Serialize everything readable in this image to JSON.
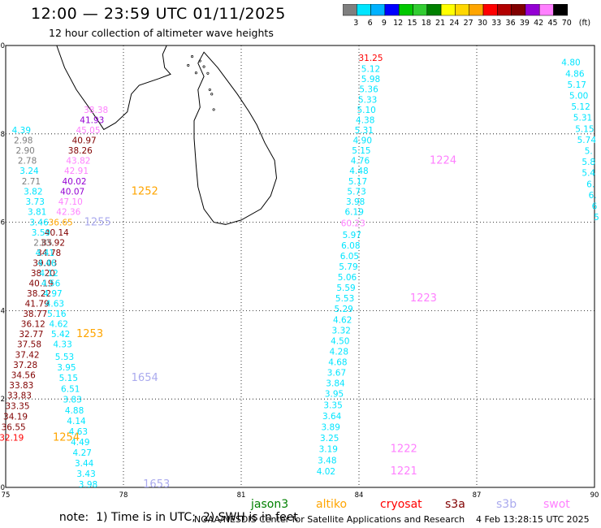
{
  "header": {
    "title": "12:00 — 23:59 UTC 01/11/2025",
    "subtitle": "12 hour collection of altimeter wave heights"
  },
  "colorbar": {
    "unit": "(ft)",
    "labels": [
      "3",
      "6",
      "9",
      "12",
      "15",
      "18",
      "21",
      "24",
      "27",
      "30",
      "33",
      "36",
      "39",
      "42",
      "45",
      "70"
    ],
    "colors": [
      "#7f7f7f",
      "#00e5ff",
      "#00b2ff",
      "#0000ff",
      "#00c800",
      "#32cd32",
      "#008000",
      "#ffff00",
      "#ffd700",
      "#ffa500",
      "#ff0000",
      "#b20000",
      "#800000",
      "#9400d3",
      "#ff80ff",
      "#000000"
    ]
  },
  "map": {
    "x_ticks": [
      "75",
      "78",
      "81",
      "84",
      "87",
      "90"
    ],
    "y_ticks": [
      "0",
      "2",
      "4",
      "6",
      "8",
      "10"
    ],
    "lon_range": [
      75,
      90
    ],
    "lat_range": [
      0,
      10
    ]
  },
  "labels": [
    {
      "t": "31.25",
      "lon": 84.3,
      "lat": 9.72,
      "c": "#ff0000"
    },
    {
      "t": "5.12",
      "lon": 84.3,
      "lat": 9.48,
      "c": "#00e5ff"
    },
    {
      "t": "5.98",
      "lon": 84.3,
      "lat": 9.25,
      "c": "#00e5ff"
    },
    {
      "t": "5.36",
      "lon": 84.25,
      "lat": 9.02,
      "c": "#00e5ff"
    },
    {
      "t": "5.33",
      "lon": 84.22,
      "lat": 8.78,
      "c": "#00e5ff"
    },
    {
      "t": "5.10",
      "lon": 84.19,
      "lat": 8.55,
      "c": "#00e5ff"
    },
    {
      "t": "4.38",
      "lon": 84.16,
      "lat": 8.32,
      "c": "#00e5ff"
    },
    {
      "t": "5.31",
      "lon": 84.13,
      "lat": 8.09,
      "c": "#00e5ff"
    },
    {
      "t": "4.90",
      "lon": 84.09,
      "lat": 7.86,
      "c": "#00e5ff"
    },
    {
      "t": "5.15",
      "lon": 84.06,
      "lat": 7.63,
      "c": "#00e5ff"
    },
    {
      "t": "4.76",
      "lon": 84.03,
      "lat": 7.4,
      "c": "#00e5ff"
    },
    {
      "t": "1224",
      "lon": 85.8,
      "lat": 7.4,
      "c": "#ff80ff"
    },
    {
      "t": "4.48",
      "lon": 84.0,
      "lat": 7.17,
      "c": "#00e5ff"
    },
    {
      "t": "5.17",
      "lon": 83.97,
      "lat": 6.93,
      "c": "#00e5ff"
    },
    {
      "t": "5.73",
      "lon": 83.94,
      "lat": 6.7,
      "c": "#00e5ff"
    },
    {
      "t": "3.98",
      "lon": 83.91,
      "lat": 6.47,
      "c": "#00e5ff"
    },
    {
      "t": "6.19",
      "lon": 83.88,
      "lat": 6.24,
      "c": "#00e5ff"
    },
    {
      "t": "60.23",
      "lon": 83.85,
      "lat": 5.98,
      "c": "#ff80ff"
    },
    {
      "t": "5.97",
      "lon": 83.82,
      "lat": 5.72,
      "c": "#00e5ff"
    },
    {
      "t": "6.08",
      "lon": 83.79,
      "lat": 5.48,
      "c": "#00e5ff"
    },
    {
      "t": "6.05",
      "lon": 83.76,
      "lat": 5.24,
      "c": "#00e5ff"
    },
    {
      "t": "5.79",
      "lon": 83.73,
      "lat": 5.0,
      "c": "#00e5ff"
    },
    {
      "t": "5.06",
      "lon": 83.7,
      "lat": 4.76,
      "c": "#00e5ff"
    },
    {
      "t": "5.59",
      "lon": 83.67,
      "lat": 4.52,
      "c": "#00e5ff"
    },
    {
      "t": "5.53",
      "lon": 83.64,
      "lat": 4.28,
      "c": "#00e5ff"
    },
    {
      "t": "1223",
      "lon": 85.3,
      "lat": 4.28,
      "c": "#ff80ff"
    },
    {
      "t": "5.29",
      "lon": 83.61,
      "lat": 4.04,
      "c": "#00e5ff"
    },
    {
      "t": "4.62",
      "lon": 83.58,
      "lat": 3.8,
      "c": "#00e5ff"
    },
    {
      "t": "3.32",
      "lon": 83.55,
      "lat": 3.56,
      "c": "#00e5ff"
    },
    {
      "t": "4.50",
      "lon": 83.52,
      "lat": 3.32,
      "c": "#00e5ff"
    },
    {
      "t": "4.28",
      "lon": 83.49,
      "lat": 3.08,
      "c": "#00e5ff"
    },
    {
      "t": "4.68",
      "lon": 83.46,
      "lat": 2.84,
      "c": "#00e5ff"
    },
    {
      "t": "3.67",
      "lon": 83.43,
      "lat": 2.6,
      "c": "#00e5ff"
    },
    {
      "t": "3.84",
      "lon": 83.4,
      "lat": 2.36,
      "c": "#00e5ff"
    },
    {
      "t": "3.95",
      "lon": 83.37,
      "lat": 2.12,
      "c": "#00e5ff"
    },
    {
      "t": "3.35",
      "lon": 83.34,
      "lat": 1.87,
      "c": "#00e5ff"
    },
    {
      "t": "3.64",
      "lon": 83.31,
      "lat": 1.62,
      "c": "#00e5ff"
    },
    {
      "t": "3.89",
      "lon": 83.28,
      "lat": 1.37,
      "c": "#00e5ff"
    },
    {
      "t": "3.25",
      "lon": 83.25,
      "lat": 1.12,
      "c": "#00e5ff"
    },
    {
      "t": "3.19",
      "lon": 83.22,
      "lat": 0.87,
      "c": "#00e5ff"
    },
    {
      "t": "1222",
      "lon": 84.8,
      "lat": 0.87,
      "c": "#ff80ff"
    },
    {
      "t": "3.48",
      "lon": 83.19,
      "lat": 0.62,
      "c": "#00e5ff"
    },
    {
      "t": "4.02",
      "lon": 83.16,
      "lat": 0.37,
      "c": "#00e5ff"
    },
    {
      "t": "1221",
      "lon": 84.8,
      "lat": 0.37,
      "c": "#ff80ff"
    },
    {
      "t": "4.80",
      "lon": 89.4,
      "lat": 9.62,
      "c": "#00e5ff"
    },
    {
      "t": "4.86",
      "lon": 89.5,
      "lat": 9.37,
      "c": "#00e5ff"
    },
    {
      "t": "5.17",
      "lon": 89.55,
      "lat": 9.12,
      "c": "#00e5ff"
    },
    {
      "t": "5.00",
      "lon": 89.6,
      "lat": 8.87,
      "c": "#00e5ff"
    },
    {
      "t": "5.12",
      "lon": 89.65,
      "lat": 8.62,
      "c": "#00e5ff"
    },
    {
      "t": "5.31",
      "lon": 89.7,
      "lat": 8.37,
      "c": "#00e5ff"
    },
    {
      "t": "5.15",
      "lon": 89.75,
      "lat": 8.12,
      "c": "#00e5ff"
    },
    {
      "t": "5.74",
      "lon": 89.8,
      "lat": 7.87,
      "c": "#00e5ff"
    },
    {
      "t": "5.",
      "lon": 89.85,
      "lat": 7.62,
      "c": "#00e5ff"
    },
    {
      "t": "5.8",
      "lon": 89.85,
      "lat": 7.37,
      "c": "#00e5ff"
    },
    {
      "t": "5.4",
      "lon": 89.85,
      "lat": 7.12,
      "c": "#00e5ff"
    },
    {
      "t": "6.",
      "lon": 89.9,
      "lat": 6.87,
      "c": "#00e5ff"
    },
    {
      "t": "6.",
      "lon": 89.95,
      "lat": 6.62,
      "c": "#00e5ff"
    },
    {
      "t": "6",
      "lon": 90.0,
      "lat": 6.37,
      "c": "#00e5ff"
    },
    {
      "t": "5",
      "lon": 90.05,
      "lat": 6.12,
      "c": "#00e5ff"
    },
    {
      "t": "38.38",
      "lon": 77.3,
      "lat": 8.55,
      "c": "#ff80ff"
    },
    {
      "t": "41.93",
      "lon": 77.2,
      "lat": 8.32,
      "c": "#9400d3"
    },
    {
      "t": "45.05",
      "lon": 77.1,
      "lat": 8.09,
      "c": "#ff80ff"
    },
    {
      "t": "40.97",
      "lon": 77.0,
      "lat": 7.86,
      "c": "#800000"
    },
    {
      "t": "38.26",
      "lon": 76.9,
      "lat": 7.63,
      "c": "#800000"
    },
    {
      "t": "43.82",
      "lon": 76.85,
      "lat": 7.4,
      "c": "#ff80ff"
    },
    {
      "t": "42.91",
      "lon": 76.8,
      "lat": 7.17,
      "c": "#ff80ff"
    },
    {
      "t": "40.02",
      "lon": 76.75,
      "lat": 6.93,
      "c": "#9400d3"
    },
    {
      "t": "40.07",
      "lon": 76.7,
      "lat": 6.7,
      "c": "#9400d3"
    },
    {
      "t": "1252",
      "lon": 78.2,
      "lat": 6.7,
      "c": "#ffa500"
    },
    {
      "t": "47.10",
      "lon": 76.65,
      "lat": 6.47,
      "c": "#ff80ff"
    },
    {
      "t": "42.36",
      "lon": 76.6,
      "lat": 6.24,
      "c": "#ff80ff"
    },
    {
      "t": "36.65",
      "lon": 76.4,
      "lat": 6.0,
      "c": "#ffa500"
    },
    {
      "t": "1255",
      "lon": 77.0,
      "lat": 6.0,
      "c": "#aaaaee"
    },
    {
      "t": "40.14",
      "lon": 76.3,
      "lat": 5.77,
      "c": "#800000"
    },
    {
      "t": "33.92",
      "lon": 76.2,
      "lat": 5.54,
      "c": "#800000"
    },
    {
      "t": "34.78",
      "lon": 76.1,
      "lat": 5.31,
      "c": "#800000"
    },
    {
      "t": "39.03",
      "lon": 76.0,
      "lat": 5.08,
      "c": "#800000"
    },
    {
      "t": "38.20",
      "lon": 75.95,
      "lat": 4.85,
      "c": "#800000"
    },
    {
      "t": "40.19",
      "lon": 75.9,
      "lat": 4.62,
      "c": "#800000"
    },
    {
      "t": "38.22",
      "lon": 75.85,
      "lat": 4.39,
      "c": "#800000"
    },
    {
      "t": "41.79",
      "lon": 75.8,
      "lat": 4.16,
      "c": "#800000"
    },
    {
      "t": "38.77",
      "lon": 75.75,
      "lat": 3.93,
      "c": "#800000"
    },
    {
      "t": "36.12",
      "lon": 75.7,
      "lat": 3.7,
      "c": "#800000"
    },
    {
      "t": "32.77",
      "lon": 75.65,
      "lat": 3.47,
      "c": "#800000"
    },
    {
      "t": "1253",
      "lon": 76.8,
      "lat": 3.47,
      "c": "#ffa500"
    },
    {
      "t": "37.58",
      "lon": 75.6,
      "lat": 3.24,
      "c": "#800000"
    },
    {
      "t": "37.42",
      "lon": 75.55,
      "lat": 3.01,
      "c": "#800000"
    },
    {
      "t": "37.28",
      "lon": 75.5,
      "lat": 2.78,
      "c": "#800000"
    },
    {
      "t": "34.56",
      "lon": 75.45,
      "lat": 2.55,
      "c": "#800000"
    },
    {
      "t": "33.83",
      "lon": 75.4,
      "lat": 2.32,
      "c": "#800000"
    },
    {
      "t": "33.83",
      "lon": 75.35,
      "lat": 2.09,
      "c": "#800000"
    },
    {
      "t": "33.35",
      "lon": 75.3,
      "lat": 1.85,
      "c": "#800000"
    },
    {
      "t": "34.19",
      "lon": 75.25,
      "lat": 1.61,
      "c": "#800000"
    },
    {
      "t": "36.55",
      "lon": 75.2,
      "lat": 1.37,
      "c": "#800000"
    },
    {
      "t": "32.19",
      "lon": 75.15,
      "lat": 1.13,
      "c": "#ff0000"
    },
    {
      "t": "1254",
      "lon": 76.2,
      "lat": 1.13,
      "c": "#ffa500"
    },
    {
      "t": "4.39",
      "lon": 75.4,
      "lat": 8.09,
      "c": "#00e5ff"
    },
    {
      "t": "2.98",
      "lon": 75.45,
      "lat": 7.86,
      "c": "#7f7f7f"
    },
    {
      "t": "2.90",
      "lon": 75.5,
      "lat": 7.63,
      "c": "#7f7f7f"
    },
    {
      "t": "2.78",
      "lon": 75.55,
      "lat": 7.4,
      "c": "#7f7f7f"
    },
    {
      "t": "3.24",
      "lon": 75.6,
      "lat": 7.17,
      "c": "#00e5ff"
    },
    {
      "t": "2.71",
      "lon": 75.65,
      "lat": 6.93,
      "c": "#7f7f7f"
    },
    {
      "t": "3.82",
      "lon": 75.7,
      "lat": 6.7,
      "c": "#00e5ff"
    },
    {
      "t": "3.73",
      "lon": 75.75,
      "lat": 6.47,
      "c": "#00e5ff"
    },
    {
      "t": "3.81",
      "lon": 75.8,
      "lat": 6.24,
      "c": "#00e5ff"
    },
    {
      "t": "3.46",
      "lon": 75.85,
      "lat": 6.0,
      "c": "#00e5ff"
    },
    {
      "t": "3.59",
      "lon": 75.9,
      "lat": 5.77,
      "c": "#00e5ff"
    },
    {
      "t": "2.85",
      "lon": 75.95,
      "lat": 5.54,
      "c": "#7f7f7f"
    },
    {
      "t": "4.41",
      "lon": 76.0,
      "lat": 5.31,
      "c": "#00e5ff"
    },
    {
      "t": "4.46",
      "lon": 76.05,
      "lat": 5.08,
      "c": "#00e5ff"
    },
    {
      "t": "4.12",
      "lon": 76.1,
      "lat": 4.85,
      "c": "#00e5ff"
    },
    {
      "t": "4.56",
      "lon": 76.15,
      "lat": 4.62,
      "c": "#00e5ff"
    },
    {
      "t": "4.97",
      "lon": 76.2,
      "lat": 4.39,
      "c": "#00e5ff"
    },
    {
      "t": "4.63",
      "lon": 76.25,
      "lat": 4.16,
      "c": "#00e5ff"
    },
    {
      "t": "5.16",
      "lon": 76.3,
      "lat": 3.93,
      "c": "#00e5ff"
    },
    {
      "t": "4.62",
      "lon": 76.35,
      "lat": 3.7,
      "c": "#00e5ff"
    },
    {
      "t": "5.42",
      "lon": 76.4,
      "lat": 3.47,
      "c": "#00e5ff"
    },
    {
      "t": "4.33",
      "lon": 76.45,
      "lat": 3.24,
      "c": "#00e5ff"
    },
    {
      "t": "5.53",
      "lon": 76.5,
      "lat": 2.96,
      "c": "#00e5ff"
    },
    {
      "t": "3.95",
      "lon": 76.55,
      "lat": 2.72,
      "c": "#00e5ff"
    },
    {
      "t": "5.15",
      "lon": 76.6,
      "lat": 2.48,
      "c": "#00e5ff"
    },
    {
      "t": "1654",
      "lon": 78.2,
      "lat": 2.48,
      "c": "#aaaaee"
    },
    {
      "t": "6.51",
      "lon": 76.65,
      "lat": 2.23,
      "c": "#00e5ff"
    },
    {
      "t": "3.83",
      "lon": 76.7,
      "lat": 1.99,
      "c": "#00e5ff"
    },
    {
      "t": "4.88",
      "lon": 76.75,
      "lat": 1.75,
      "c": "#00e5ff"
    },
    {
      "t": "4.14",
      "lon": 76.8,
      "lat": 1.51,
      "c": "#00e5ff"
    },
    {
      "t": "4.63",
      "lon": 76.85,
      "lat": 1.27,
      "c": "#00e5ff"
    },
    {
      "t": "4.49",
      "lon": 76.9,
      "lat": 1.03,
      "c": "#00e5ff"
    },
    {
      "t": "4.27",
      "lon": 76.95,
      "lat": 0.79,
      "c": "#00e5ff"
    },
    {
      "t": "3.44",
      "lon": 77.0,
      "lat": 0.55,
      "c": "#00e5ff"
    },
    {
      "t": "3.43",
      "lon": 77.05,
      "lat": 0.31,
      "c": "#00e5ff"
    },
    {
      "t": "3.98",
      "lon": 77.1,
      "lat": 0.07,
      "c": "#00e5ff"
    },
    {
      "t": "1653",
      "lon": 78.5,
      "lat": 0.07,
      "c": "#aaaaee"
    }
  ],
  "footer": {
    "note_prefix": "note:  1) Time is in UTC;  2) SWH is in feet",
    "satellites": [
      {
        "name": "jason3",
        "color": "#008000"
      },
      {
        "name": "altiko",
        "color": "#ffa500"
      },
      {
        "name": "cryosat",
        "color": "#ff0000"
      },
      {
        "name": "s3a",
        "color": "#800000"
      },
      {
        "name": "s3b",
        "color": "#aaaaee"
      },
      {
        "name": "swot",
        "color": "#ff80ff"
      }
    ],
    "credit": "NOAA/NESDIS Center for Satellite Applications and Research",
    "stamp": "4 Feb 13:28:15 UTC 2025"
  }
}
